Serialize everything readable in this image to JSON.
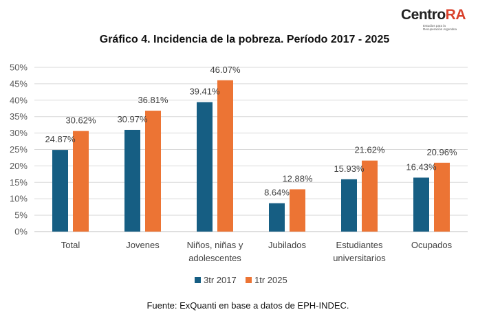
{
  "logo": {
    "text_main": "Centro",
    "text_accent": "RA",
    "subtitle": "Estudios para la\nRecuperación Argentina"
  },
  "title": "Gráfico 4. Incidencia de la pobreza. Período 2017 - 2025",
  "source": "Fuente: ExQuanti en base a datos de EPH-INDEC.",
  "chart_data": {
    "type": "bar",
    "title": "Gráfico 4. Incidencia de la pobreza. Período 2017 - 2025",
    "xlabel": "",
    "ylabel": "",
    "categories": [
      [
        "Total"
      ],
      [
        "Jovenes"
      ],
      [
        "Niños, niñas y",
        "adolescentes"
      ],
      [
        "Jubilados"
      ],
      [
        "Estudiantes",
        "universitarios"
      ],
      [
        "Ocupados"
      ]
    ],
    "series": [
      {
        "name": "3tr 2017",
        "color": "#165e83",
        "values": [
          24.87,
          30.97,
          39.41,
          8.64,
          15.93,
          16.43
        ],
        "labels": [
          "24.87%",
          "30.97%",
          "39.41%",
          "8.64%",
          "15.93%",
          "16.43%"
        ]
      },
      {
        "name": "1tr 2025",
        "color": "#ec7434",
        "values": [
          30.62,
          36.81,
          46.07,
          12.88,
          21.62,
          20.96
        ],
        "labels": [
          "30.62%",
          "36.81%",
          "46.07%",
          "12.88%",
          "21.62%",
          "20.96%"
        ]
      }
    ],
    "ylim": [
      0,
      50
    ],
    "yticks": [
      "0%",
      "5%",
      "10%",
      "15%",
      "20%",
      "25%",
      "30%",
      "35%",
      "40%",
      "45%",
      "50%"
    ],
    "grid": true,
    "legend_position": "bottom"
  }
}
